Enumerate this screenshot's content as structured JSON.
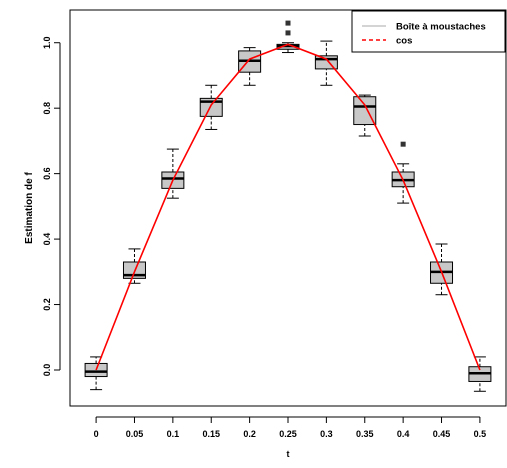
{
  "chart_data": {
    "type": "boxplot",
    "title": "",
    "xlabel": "t",
    "ylabel": "Estimation de f",
    "categories": [
      "0",
      "0.05",
      "0.1",
      "0.15",
      "0.2",
      "0.25",
      "0.3",
      "0.35",
      "0.4",
      "0.45",
      "0.5"
    ],
    "x_values": [
      0,
      0.05,
      0.1,
      0.15,
      0.2,
      0.25,
      0.3,
      0.35,
      0.4,
      0.45,
      0.5
    ],
    "y_ticks": [
      "0.0",
      "0.2",
      "0.4",
      "0.6",
      "0.8",
      "1.0"
    ],
    "y_tick_values": [
      0,
      0.2,
      0.4,
      0.6,
      0.8,
      1.0
    ],
    "ylim": [
      -0.11,
      1.1
    ],
    "xlim": [
      -0.034,
      0.534
    ],
    "boxes": [
      {
        "x": 0.0,
        "whisker_low": -0.06,
        "q1": -0.02,
        "median": -0.005,
        "q3": 0.02,
        "whisker_high": 0.04,
        "outliers": []
      },
      {
        "x": 0.05,
        "whisker_low": 0.265,
        "q1": 0.28,
        "median": 0.29,
        "q3": 0.33,
        "whisker_high": 0.37,
        "outliers": []
      },
      {
        "x": 0.1,
        "whisker_low": 0.525,
        "q1": 0.555,
        "median": 0.585,
        "q3": 0.605,
        "whisker_high": 0.675,
        "outliers": []
      },
      {
        "x": 0.15,
        "whisker_low": 0.735,
        "q1": 0.775,
        "median": 0.82,
        "q3": 0.83,
        "whisker_high": 0.87,
        "outliers": []
      },
      {
        "x": 0.2,
        "whisker_low": 0.87,
        "q1": 0.91,
        "median": 0.945,
        "q3": 0.975,
        "whisker_high": 0.985,
        "outliers": []
      },
      {
        "x": 0.25,
        "whisker_low": 0.97,
        "q1": 0.98,
        "median": 0.99,
        "q3": 0.995,
        "whisker_high": 1.0,
        "outliers": [
          1.03,
          1.06
        ]
      },
      {
        "x": 0.3,
        "whisker_low": 0.87,
        "q1": 0.92,
        "median": 0.95,
        "q3": 0.96,
        "whisker_high": 1.005,
        "outliers": []
      },
      {
        "x": 0.35,
        "whisker_low": 0.715,
        "q1": 0.75,
        "median": 0.805,
        "q3": 0.835,
        "whisker_high": 0.84,
        "outliers": []
      },
      {
        "x": 0.4,
        "whisker_low": 0.51,
        "q1": 0.56,
        "median": 0.58,
        "q3": 0.605,
        "whisker_high": 0.63,
        "outliers": [
          0.69
        ]
      },
      {
        "x": 0.45,
        "whisker_low": 0.23,
        "q1": 0.265,
        "median": 0.3,
        "q3": 0.33,
        "whisker_high": 0.385,
        "outliers": []
      },
      {
        "x": 0.5,
        "whisker_low": -0.065,
        "q1": -0.035,
        "median": -0.01,
        "q3": 0.01,
        "whisker_high": 0.04,
        "outliers": []
      }
    ],
    "series": [
      {
        "name": "cos",
        "type": "line",
        "color": "#ff0000",
        "x": [
          0,
          0.05,
          0.1,
          0.15,
          0.2,
          0.25,
          0.3,
          0.35,
          0.4,
          0.45,
          0.5
        ],
        "y": [
          0.0,
          0.3,
          0.58,
          0.81,
          0.95,
          0.995,
          0.95,
          0.81,
          0.58,
          0.3,
          0.0
        ]
      }
    ],
    "legend": {
      "position": "top-right",
      "entries": [
        {
          "label": "Boîte à moustaches",
          "color": "#aaaaaa",
          "style": "solid"
        },
        {
          "label": "cos",
          "color": "#ff0000",
          "style": "dashed"
        }
      ]
    },
    "box_fill": "#c8c8c8",
    "grid": false
  }
}
